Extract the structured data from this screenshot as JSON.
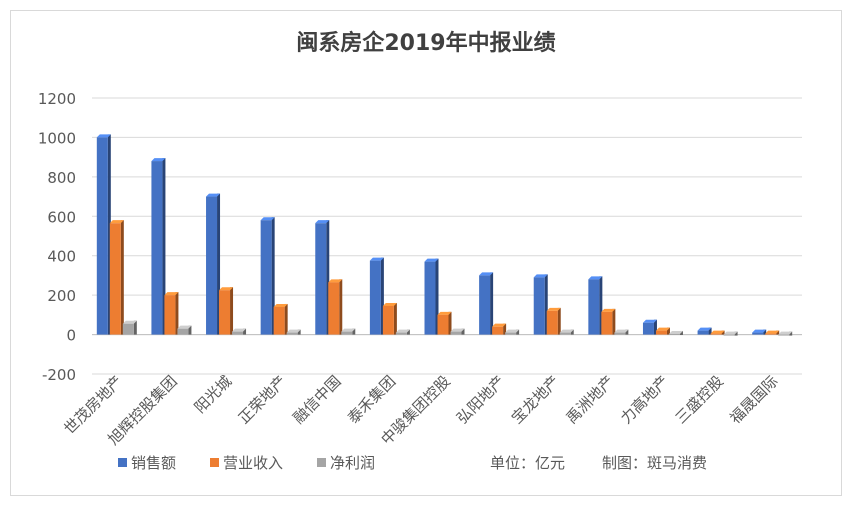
{
  "chart_data": {
    "type": "bar",
    "title": "闽系房企2019年中报业绩",
    "categories": [
      "世茂房地产",
      "旭辉控股集团",
      "阳光城",
      "正荣地产",
      "融信中国",
      "泰禾集团",
      "中骏集团控股",
      "弘阳地产",
      "宝龙地产",
      "禹洲地产",
      "力高地产",
      "三盛控股",
      "福晟国际"
    ],
    "series": [
      {
        "name": "销售额",
        "color": "#4472c4",
        "values": [
          1000,
          880,
          700,
          580,
          565,
          375,
          370,
          300,
          290,
          280,
          60,
          20,
          10
        ]
      },
      {
        "name": "营业收入",
        "color": "#ed7d31",
        "values": [
          565,
          200,
          225,
          140,
          265,
          145,
          100,
          40,
          120,
          115,
          20,
          5,
          5
        ]
      },
      {
        "name": "净利润",
        "color": "#a5a5a5",
        "values": [
          55,
          30,
          15,
          10,
          15,
          10,
          15,
          10,
          10,
          10,
          3,
          -5,
          -3
        ]
      }
    ],
    "ylim": [
      -200,
      1200
    ],
    "yticks": [
      -200,
      0,
      200,
      400,
      600,
      800,
      1000,
      1200
    ],
    "grid": true,
    "legend_position": "bottom",
    "annotations": [
      "单位：亿元",
      "制图：斑马消费"
    ]
  }
}
